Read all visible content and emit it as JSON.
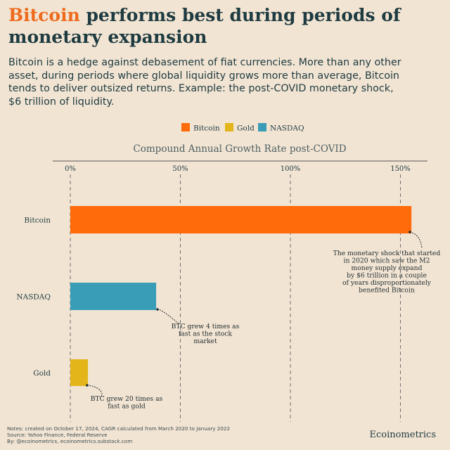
{
  "title": {
    "highlight": "Bitcoin",
    "rest": " performs best during periods of monetary expansion"
  },
  "subtitle": "Bitcoin is a hedge against debasement of fiat currencies. More than any other asset, during periods where global liquidity grows more than average, Bitcoin tends to deliver outsized returns. Example: the post-COVID monetary shock, $6 trillion of liquidity.",
  "colors": {
    "bitcoin": "#ff6a0a",
    "gold": "#e3b51a",
    "nasdaq": "#3a9db8",
    "accent": "#ee6b1d",
    "text": "#1d3b40"
  },
  "chart_data": {
    "type": "bar",
    "orientation": "horizontal",
    "title": "Compound Annual Growth Rate post-COVID",
    "legend": [
      "Bitcoin",
      "Gold",
      "NASDAQ"
    ],
    "legend_placement": "top-center",
    "categories": [
      "Bitcoin",
      "NASDAQ",
      "Gold"
    ],
    "values": [
      155,
      39,
      8
    ],
    "unit": "%",
    "xlim": [
      0,
      160
    ],
    "ticks": [
      0,
      50,
      100,
      150
    ],
    "tick_labels": [
      "0%",
      "50%",
      "100%",
      "150%"
    ],
    "grid": "vertical dashed",
    "annotations": [
      {
        "target": "Bitcoin",
        "lines": [
          "The monetary shock that started",
          "in 2020 which saw the M2",
          "money supply expand",
          "by $6 trillion in a couple",
          "of years disproportionately",
          "benefited Bitcoin"
        ]
      },
      {
        "target": "NASDAQ",
        "lines": [
          "BTC grew 4 times as",
          "fast as the stock",
          "market"
        ]
      },
      {
        "target": "Gold",
        "lines": [
          "BTC grew 20 times as",
          "fast as gold"
        ]
      }
    ]
  },
  "footer": {
    "notes": "Notes: created on October 17, 2024, CAGR calculated from March 2020 to January 2022",
    "source": "Source: Yahoo Finance, Federal Reserve",
    "by": "By: @ecoinometrics, ecoinometrics.substack.com",
    "brand": "Ecoinometrics"
  }
}
